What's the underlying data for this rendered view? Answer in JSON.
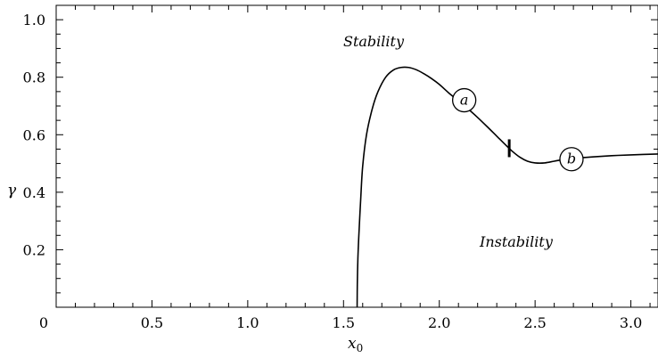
{
  "chart_data": {
    "type": "line",
    "xlabel": "x",
    "xlabel_sub": "0",
    "ylabel": "γ",
    "xlim": [
      0,
      3.1416
    ],
    "ylim": [
      0,
      1.05
    ],
    "xticks": [
      0,
      0.5,
      1.0,
      1.5,
      2.0,
      2.5,
      3.0
    ],
    "xtick_labels": [
      "0",
      "0.5",
      "1.0",
      "1.5",
      "2.0",
      "2.5",
      "3.0"
    ],
    "yticks": [
      0.2,
      0.4,
      0.6,
      0.8,
      1.0
    ],
    "ytick_labels": [
      "0.2",
      "0.4",
      "0.6",
      "0.8",
      "1.0"
    ],
    "grid": false,
    "series": [
      {
        "x": [
          1.571,
          1.572,
          1.575,
          1.58,
          1.59,
          1.6,
          1.62,
          1.65,
          1.68,
          1.72,
          1.76,
          1.8,
          1.84,
          1.88,
          1.92,
          1.96,
          2.0,
          2.05,
          2.1,
          2.15,
          2.2,
          2.25,
          2.3,
          2.35,
          2.38,
          2.42,
          2.46,
          2.5,
          2.55,
          2.6,
          2.65,
          2.7,
          2.8,
          2.9,
          3.0,
          3.1416
        ],
        "y": [
          0.0,
          0.08,
          0.17,
          0.25,
          0.38,
          0.49,
          0.6,
          0.69,
          0.75,
          0.8,
          0.825,
          0.834,
          0.834,
          0.826,
          0.812,
          0.795,
          0.775,
          0.745,
          0.718,
          0.69,
          0.66,
          0.628,
          0.595,
          0.562,
          0.543,
          0.522,
          0.508,
          0.502,
          0.502,
          0.508,
          0.514,
          0.518,
          0.523,
          0.527,
          0.53,
          0.533
        ]
      }
    ],
    "region_labels": [
      "Stability",
      "Instability"
    ],
    "markers": [
      {
        "label": "a",
        "x": 2.13,
        "y": 0.72
      },
      {
        "label": "b",
        "x": 2.69,
        "y": 0.515
      }
    ],
    "tick_mark": {
      "x": 2.365,
      "y": 0.553
    }
  }
}
